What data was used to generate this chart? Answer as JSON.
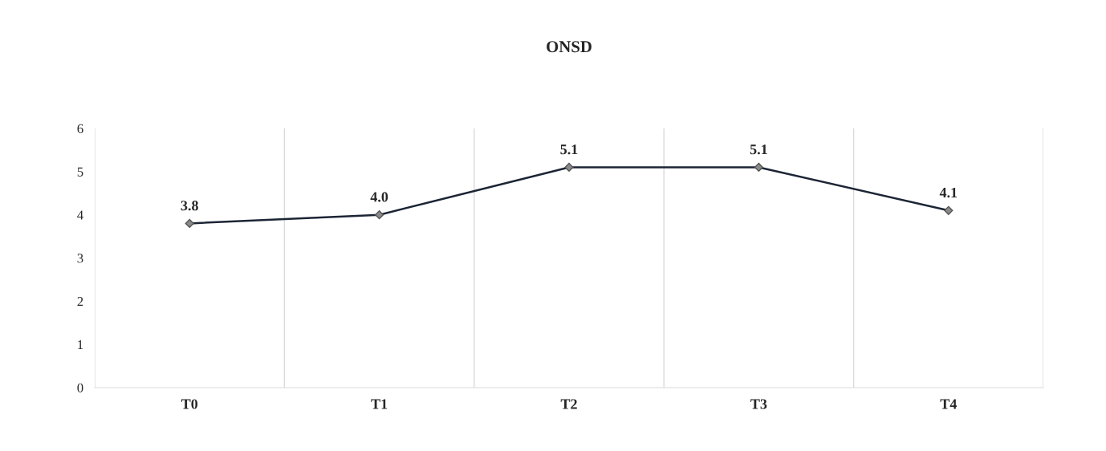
{
  "chart_data": {
    "type": "line",
    "title": "ONSD",
    "categories": [
      "T0",
      "T1",
      "T2",
      "T3",
      "T4"
    ],
    "series": [
      {
        "color": "#1c2535",
        "values": [
          3.8,
          4.0,
          5.1,
          5.1,
          4.1
        ],
        "value_labels": [
          "3.8",
          "4.0",
          "5.1",
          "5.1",
          "4.1"
        ]
      }
    ],
    "ylim": [
      0,
      6
    ],
    "yticks": [
      0,
      1,
      2,
      3,
      4,
      5,
      6
    ],
    "grid": "x",
    "marker": "diamond",
    "line_style": "solid",
    "legend": false
  }
}
